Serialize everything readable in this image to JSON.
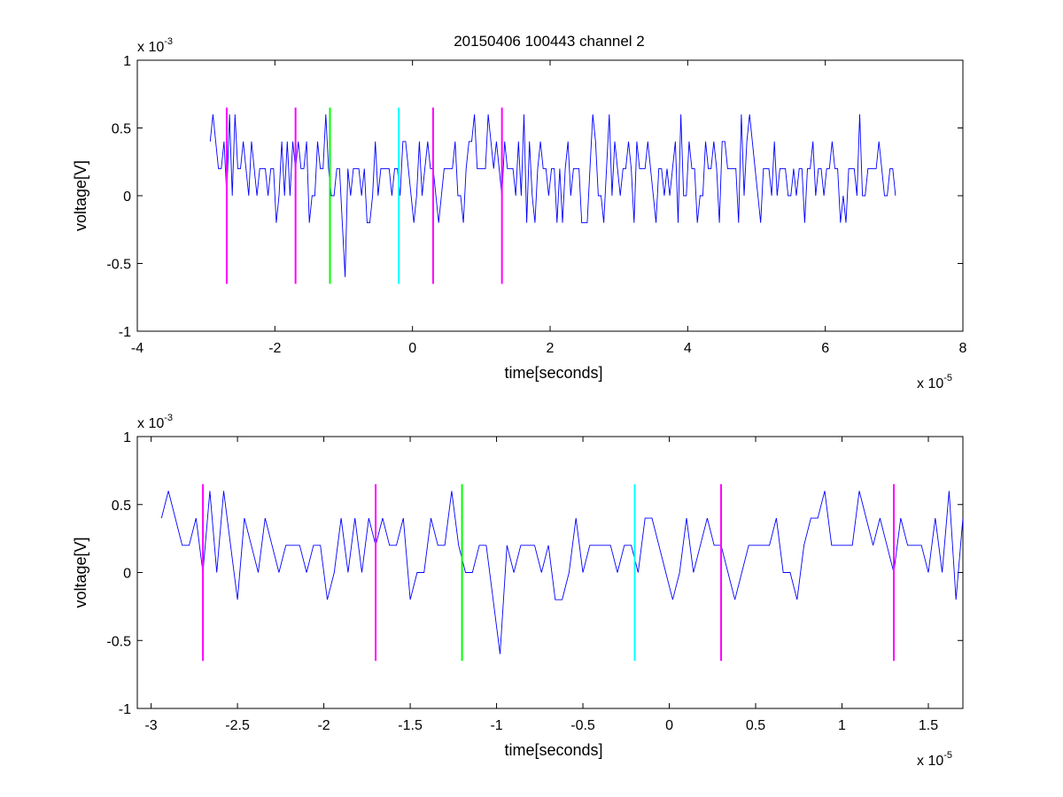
{
  "figure": {
    "title": "20150406 100443 channel 2"
  },
  "colors": {
    "signal": "#0000ff",
    "magenta_marker": "#ff00ff",
    "green_marker": "#00ff00",
    "cyan_marker": "#00ffff",
    "axes": "#000000"
  },
  "chart_data": [
    {
      "type": "line",
      "title": "20150406 100443 channel 2",
      "xlabel": "time[seconds]",
      "ylabel": "voltage[V]",
      "x_multiplier_label": "x 10",
      "x_multiplier_exp": "-5",
      "y_multiplier_label": "x 10",
      "y_multiplier_exp": "-3",
      "xlim": [
        -4,
        8
      ],
      "ylim": [
        -1,
        1
      ],
      "x_unit_scale": "1e-5",
      "y_unit_scale": "1e-3",
      "xticks": [
        -4,
        -2,
        0,
        2,
        4,
        6,
        8
      ],
      "xtick_labels": [
        "-4",
        "-2",
        "0",
        "2",
        "4",
        "6",
        "8"
      ],
      "yticks": [
        -1,
        -0.5,
        0,
        0.5,
        1
      ],
      "ytick_labels": [
        "-1",
        "-0.5",
        "0",
        "0.5",
        "1"
      ],
      "grid": false,
      "series": [
        {
          "kind": "noisy-signal",
          "color": "#0000ff",
          "x_range": [
            -2.94,
            7.02
          ],
          "baseline": 0.2,
          "levels": [
            -0.6,
            -0.2,
            0,
            0.2,
            0.4,
            0.6
          ],
          "min": -0.6,
          "max": 0.6,
          "extremes": [
            {
              "x": -2.91,
              "y": 0.6
            },
            {
              "x": -0.97,
              "y": -0.6
            },
            {
              "x": 4.8,
              "y": 0.6
            },
            {
              "x": 1.62,
              "y": 0.6
            }
          ]
        }
      ],
      "markers": [
        {
          "x": -2.7,
          "y_range": [
            -0.65,
            0.65
          ],
          "color": "#ff00ff"
        },
        {
          "x": -1.7,
          "y_range": [
            -0.65,
            0.65
          ],
          "color": "#ff00ff"
        },
        {
          "x": -1.2,
          "y_range": [
            -0.65,
            0.65
          ],
          "color": "#00ff00"
        },
        {
          "x": -0.2,
          "y_range": [
            -0.65,
            0.65
          ],
          "color": "#00ffff"
        },
        {
          "x": 0.3,
          "y_range": [
            -0.65,
            0.65
          ],
          "color": "#ff00ff"
        },
        {
          "x": 1.3,
          "y_range": [
            -0.65,
            0.65
          ],
          "color": "#ff00ff"
        }
      ]
    },
    {
      "type": "line",
      "title": "",
      "xlabel": "time[seconds]",
      "ylabel": "voltage[V]",
      "x_multiplier_label": "x 10",
      "x_multiplier_exp": "-5",
      "y_multiplier_label": "x 10",
      "y_multiplier_exp": "-3",
      "xlim": [
        -3.08,
        1.7
      ],
      "ylim": [
        -1,
        1
      ],
      "x_unit_scale": "1e-5",
      "y_unit_scale": "1e-3",
      "xticks": [
        -3,
        -2.5,
        -2,
        -1.5,
        -1,
        -0.5,
        0,
        0.5,
        1,
        1.5
      ],
      "xtick_labels": [
        "-3",
        "-2.5",
        "-2",
        "-1.5",
        "-1",
        "-0.5",
        "0",
        "0.5",
        "1",
        "1.5"
      ],
      "yticks": [
        -1,
        -0.5,
        0,
        0.5,
        1
      ],
      "ytick_labels": [
        "-1",
        "-0.5",
        "0",
        "0.5",
        "1"
      ],
      "grid": false,
      "series": [
        {
          "kind": "noisy-signal",
          "color": "#0000ff",
          "x_range": [
            -2.94,
            1.7
          ],
          "baseline": 0.2,
          "levels": [
            -0.6,
            -0.2,
            0,
            0.2,
            0.4,
            0.6
          ],
          "min": -0.6,
          "max": 0.6,
          "extremes": [
            {
              "x": -2.91,
              "y": 0.6
            },
            {
              "x": -0.97,
              "y": -0.6
            },
            {
              "x": 1.62,
              "y": 0.6
            },
            {
              "x": -2.5,
              "y": -0.2
            }
          ]
        }
      ],
      "markers": [
        {
          "x": -2.7,
          "y_range": [
            -0.65,
            0.65
          ],
          "color": "#ff00ff"
        },
        {
          "x": -1.7,
          "y_range": [
            -0.65,
            0.65
          ],
          "color": "#ff00ff"
        },
        {
          "x": -1.2,
          "y_range": [
            -0.65,
            0.65
          ],
          "color": "#00ff00"
        },
        {
          "x": -0.2,
          "y_range": [
            -0.65,
            0.65
          ],
          "color": "#00ffff"
        },
        {
          "x": 0.3,
          "y_range": [
            -0.65,
            0.65
          ],
          "color": "#ff00ff"
        },
        {
          "x": 1.3,
          "y_range": [
            -0.65,
            0.65
          ],
          "color": "#ff00ff"
        }
      ]
    }
  ]
}
